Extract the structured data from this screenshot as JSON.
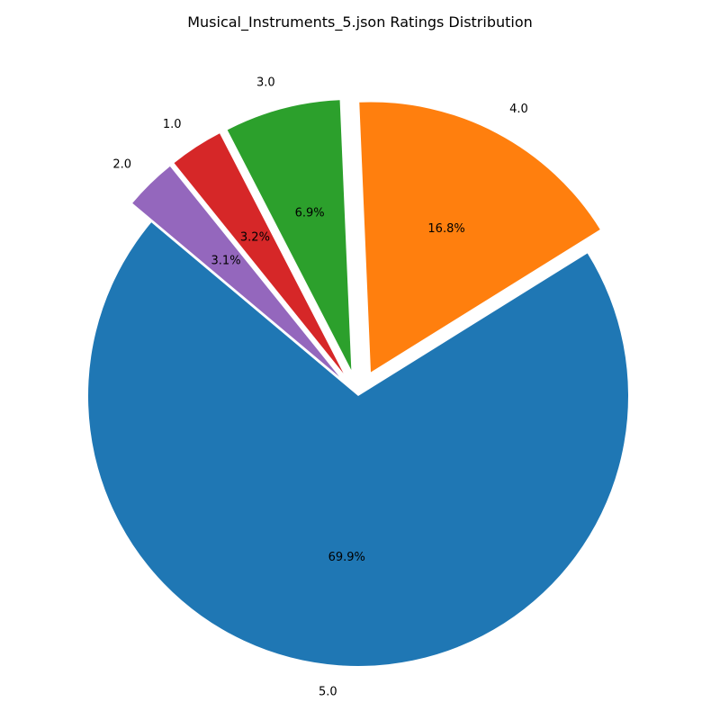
{
  "chart_data": {
    "type": "pie",
    "title": "Musical_Instruments_5.json Ratings Distribution",
    "slices": [
      {
        "label": "5.0",
        "percent": 69.9,
        "percent_label": "69.9%",
        "color": "#1f77b4",
        "exploded": false
      },
      {
        "label": "4.0",
        "percent": 16.8,
        "percent_label": "16.8%",
        "color": "#ff7f0e",
        "exploded": true
      },
      {
        "label": "3.0",
        "percent": 6.9,
        "percent_label": "6.9%",
        "color": "#2ca02c",
        "exploded": true
      },
      {
        "label": "1.0",
        "percent": 3.2,
        "percent_label": "3.2%",
        "color": "#d62728",
        "exploded": true
      },
      {
        "label": "2.0",
        "percent": 3.1,
        "percent_label": "3.1%",
        "color": "#9467bd",
        "exploded": true
      }
    ],
    "legend": false
  }
}
